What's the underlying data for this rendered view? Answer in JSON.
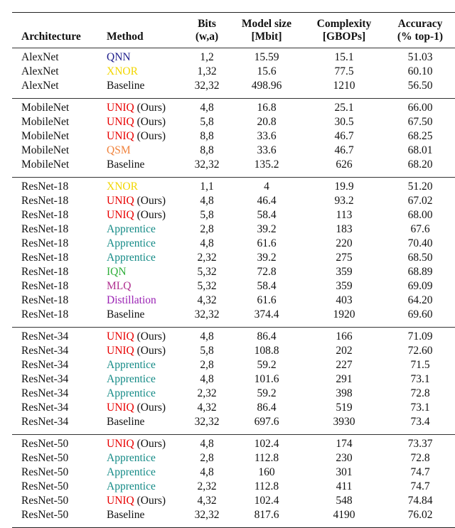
{
  "header": {
    "architecture": "Architecture",
    "method": "Method",
    "bits": [
      "Bits",
      "(w,a)"
    ],
    "model_size": [
      "Model size",
      "[Mbit]"
    ],
    "complexity": [
      "Complexity",
      "[GBOPs]"
    ],
    "accuracy": [
      "Accuracy",
      "(% top-1)"
    ]
  },
  "method_colors": {
    "QNN": "#1c1c8a",
    "XNOR": "#f2d600",
    "UNIQ": "#e80000",
    "QSM": "#f0823c",
    "Apprentice": "#138a86",
    "IQN": "#2fae3a",
    "MLQ": "#b03090",
    "Distillation": "#9a22b4",
    "Baseline": "#111111"
  },
  "groups": [
    {
      "rows": [
        [
          "AlexNet",
          "QNN",
          "",
          "1,2",
          "15.59",
          "15.1",
          "51.03"
        ],
        [
          "AlexNet",
          "XNOR",
          "",
          "1,32",
          "15.6",
          "77.5",
          "60.10"
        ],
        [
          "AlexNet",
          "Baseline",
          "",
          "32,32",
          "498.96",
          "1210",
          "56.50"
        ]
      ]
    },
    {
      "rows": [
        [
          "MobileNet",
          "UNIQ",
          " (Ours)",
          "4,8",
          "16.8",
          "25.1",
          "66.00"
        ],
        [
          "MobileNet",
          "UNIQ",
          " (Ours)",
          "5,8",
          "20.8",
          "30.5",
          "67.50"
        ],
        [
          "MobileNet",
          "UNIQ",
          " (Ours)",
          "8,8",
          "33.6",
          "46.7",
          "68.25"
        ],
        [
          "MobileNet",
          "QSM",
          "",
          "8,8",
          "33.6",
          "46.7",
          "68.01"
        ],
        [
          "MobileNet",
          "Baseline",
          "",
          "32,32",
          "135.2",
          "626",
          "68.20"
        ]
      ]
    },
    {
      "rows": [
        [
          "ResNet-18",
          "XNOR",
          "",
          "1,1",
          "4",
          "19.9",
          "51.20"
        ],
        [
          "ResNet-18",
          "UNIQ",
          " (Ours)",
          "4,8",
          "46.4",
          "93.2",
          "67.02"
        ],
        [
          "ResNet-18",
          "UNIQ",
          " (Ours)",
          "5,8",
          "58.4",
          "113",
          "68.00"
        ],
        [
          "ResNet-18",
          "Apprentice",
          "",
          "2,8",
          "39.2",
          "183",
          "67.6"
        ],
        [
          "ResNet-18",
          "Apprentice",
          "",
          "4,8",
          "61.6",
          "220",
          "70.40"
        ],
        [
          "ResNet-18",
          "Apprentice",
          "",
          "2,32",
          "39.2",
          "275",
          "68.50"
        ],
        [
          "ResNet-18",
          "IQN",
          "",
          "5,32",
          "72.8",
          "359",
          "68.89"
        ],
        [
          "ResNet-18",
          "MLQ",
          "",
          "5,32",
          "58.4",
          "359",
          "69.09"
        ],
        [
          "ResNet-18",
          "Distillation",
          "",
          "4,32",
          "61.6",
          "403",
          "64.20"
        ],
        [
          "ResNet-18",
          "Baseline",
          "",
          "32,32",
          "374.4",
          "1920",
          "69.60"
        ]
      ]
    },
    {
      "rows": [
        [
          "ResNet-34",
          "UNIQ",
          " (Ours)",
          "4,8",
          "86.4",
          "166",
          "71.09"
        ],
        [
          "ResNet-34",
          "UNIQ",
          " (Ours)",
          "5,8",
          "108.8",
          "202",
          "72.60"
        ],
        [
          "ResNet-34",
          "Apprentice",
          "",
          "2,8",
          "59.2",
          "227",
          "71.5"
        ],
        [
          "ResNet-34",
          "Apprentice",
          "",
          "4,8",
          "101.6",
          "291",
          "73.1"
        ],
        [
          "ResNet-34",
          "Apprentice",
          "",
          "2,32",
          "59.2",
          "398",
          "72.8"
        ],
        [
          "ResNet-34",
          "UNIQ",
          " (Ours)",
          "4,32",
          "86.4",
          "519",
          "73.1"
        ],
        [
          "ResNet-34",
          "Baseline",
          "",
          "32,32",
          "697.6",
          "3930",
          "73.4"
        ]
      ]
    },
    {
      "rows": [
        [
          "ResNet-50",
          "UNIQ",
          " (Ours)",
          "4,8",
          "102.4",
          "174",
          "73.37"
        ],
        [
          "ResNet-50",
          "Apprentice",
          "",
          "2,8",
          "112.8",
          "230",
          "72.8"
        ],
        [
          "ResNet-50",
          "Apprentice",
          "",
          "4,8",
          "160",
          "301",
          "74.7"
        ],
        [
          "ResNet-50",
          "Apprentice",
          "",
          "2,32",
          "112.8",
          "411",
          "74.7"
        ],
        [
          "ResNet-50",
          "UNIQ",
          " (Ours)",
          "4,32",
          "102.4",
          "548",
          "74.84"
        ],
        [
          "ResNet-50",
          "Baseline",
          "",
          "32,32",
          "817.6",
          "4190",
          "76.02"
        ]
      ]
    }
  ]
}
